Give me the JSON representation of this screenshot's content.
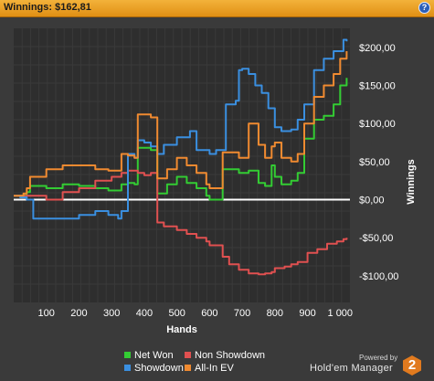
{
  "header": {
    "title": "Winnings: $162,81",
    "help_glyph": "?",
    "help_icon": "help-icon"
  },
  "chart_data": {
    "type": "line",
    "xlabel": "Hands",
    "ylabel": "Winnings",
    "xlim": [
      0,
      1030
    ],
    "ylim": [
      -135,
      225
    ],
    "xticks": [
      100,
      200,
      300,
      400,
      500,
      600,
      700,
      800,
      900,
      1000
    ],
    "xtick_labels": [
      "100",
      "200",
      "300",
      "400",
      "500",
      "600",
      "700",
      "800",
      "900",
      "1 000"
    ],
    "yticks": [
      200,
      150,
      100,
      50,
      0,
      -50,
      -100
    ],
    "ytick_labels": [
      "$200,00",
      "$150,00",
      "$100,00",
      "$50,00",
      "$0,00",
      "-$50,00",
      "-$100,00"
    ],
    "grid": true,
    "zero_line": true,
    "legend_position": "bottom",
    "series": [
      {
        "name": "Net Won",
        "color": "#33cc33",
        "x": [
          0,
          30,
          40,
          50,
          100,
          150,
          200,
          250,
          290,
          330,
          350,
          370,
          380,
          420,
          440,
          470,
          500,
          530,
          560,
          590,
          600,
          640,
          660,
          690,
          720,
          750,
          770,
          790,
          800,
          820,
          850,
          870,
          890,
          920,
          950,
          980,
          1000,
          1020
        ],
        "y": [
          5,
          6,
          10,
          18,
          15,
          20,
          18,
          15,
          12,
          20,
          22,
          20,
          68,
          65,
          8,
          20,
          30,
          22,
          15,
          5,
          0,
          40,
          40,
          35,
          38,
          22,
          18,
          45,
          30,
          20,
          25,
          35,
          80,
          105,
          110,
          125,
          150,
          160
        ]
      },
      {
        "name": "Non Showdown",
        "color": "#e05050",
        "x": [
          0,
          50,
          100,
          150,
          200,
          250,
          300,
          330,
          350,
          380,
          400,
          420,
          440,
          460,
          500,
          530,
          560,
          590,
          600,
          640,
          660,
          690,
          720,
          750,
          770,
          790,
          800,
          830,
          850,
          870,
          900,
          930,
          960,
          990,
          1010,
          1020
        ],
        "y": [
          5,
          5,
          0,
          10,
          15,
          25,
          30,
          35,
          38,
          35,
          32,
          35,
          -30,
          -35,
          -40,
          -45,
          -50,
          -55,
          -60,
          -75,
          -85,
          -92,
          -97,
          -98,
          -97,
          -95,
          -90,
          -88,
          -85,
          -82,
          -70,
          -65,
          -58,
          -55,
          -52,
          -50
        ]
      },
      {
        "name": "Showdown",
        "color": "#3a8fe0",
        "x": [
          0,
          20,
          40,
          60,
          100,
          150,
          200,
          250,
          290,
          320,
          330,
          350,
          370,
          380,
          400,
          420,
          440,
          460,
          500,
          540,
          560,
          600,
          620,
          650,
          680,
          690,
          700,
          720,
          740,
          760,
          780,
          800,
          820,
          850,
          870,
          890,
          920,
          950,
          980,
          1010,
          1020
        ],
        "y": [
          5,
          3,
          0,
          -25,
          -25,
          -25,
          -20,
          -15,
          -20,
          -25,
          -15,
          60,
          55,
          78,
          75,
          70,
          60,
          72,
          82,
          90,
          65,
          60,
          65,
          125,
          130,
          170,
          172,
          165,
          150,
          140,
          120,
          95,
          90,
          92,
          105,
          125,
          170,
          185,
          195,
          210,
          208
        ]
      },
      {
        "name": "All-In EV",
        "color": "#f08a30",
        "x": [
          0,
          30,
          40,
          50,
          100,
          150,
          200,
          250,
          290,
          330,
          350,
          370,
          380,
          420,
          440,
          470,
          500,
          530,
          560,
          590,
          600,
          640,
          660,
          690,
          720,
          750,
          770,
          790,
          800,
          820,
          850,
          870,
          890,
          920,
          950,
          980,
          1000,
          1020
        ],
        "y": [
          5,
          8,
          15,
          30,
          40,
          45,
          45,
          40,
          38,
          60,
          58,
          55,
          112,
          108,
          28,
          40,
          55,
          45,
          35,
          20,
          15,
          62,
          62,
          55,
          100,
          72,
          55,
          70,
          75,
          55,
          50,
          60,
          100,
          135,
          150,
          165,
          185,
          195
        ]
      }
    ]
  },
  "branding": {
    "powered_by": "Powered by",
    "product": "Hold'em Manager",
    "logo_glyph": "2"
  }
}
